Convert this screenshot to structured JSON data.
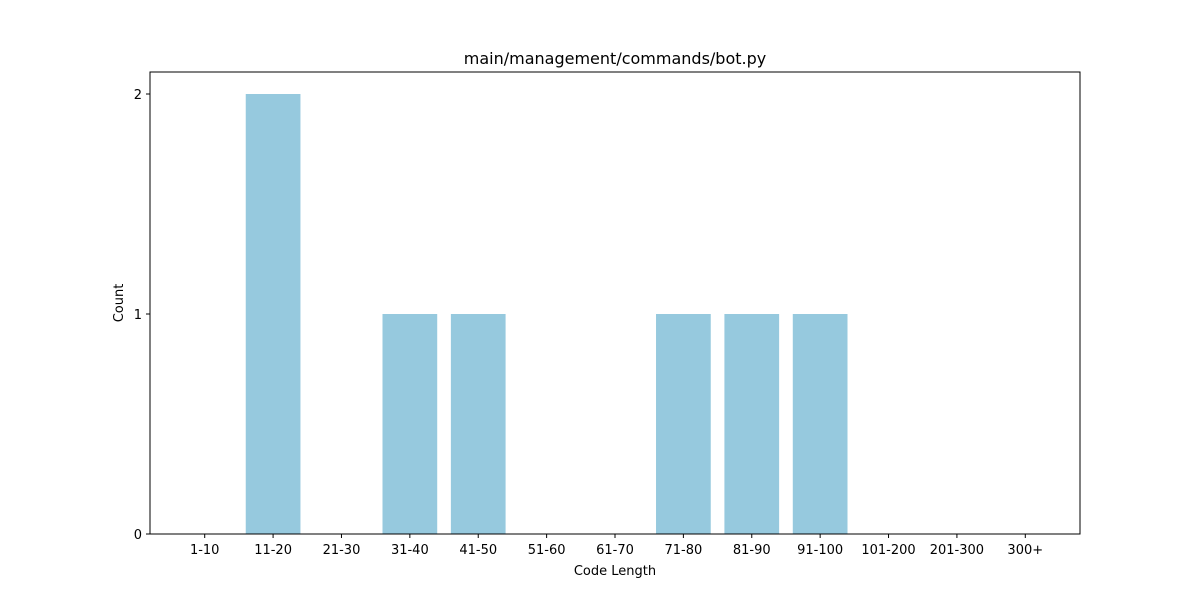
{
  "chart_data": {
    "type": "bar",
    "title": "main/management/commands/bot.py",
    "xlabel": "Code Length",
    "ylabel": "Count",
    "categories": [
      "1-10",
      "11-20",
      "21-30",
      "31-40",
      "41-50",
      "51-60",
      "61-70",
      "71-80",
      "81-90",
      "91-100",
      "101-200",
      "201-300",
      "300+"
    ],
    "values": [
      0,
      2,
      0,
      1,
      1,
      0,
      0,
      1,
      1,
      1,
      0,
      0,
      0
    ],
    "ylim": [
      0,
      2.1
    ],
    "yticks": [
      0,
      1,
      2
    ],
    "grid": false,
    "legend": "none",
    "bar_color": "#96c9de"
  }
}
